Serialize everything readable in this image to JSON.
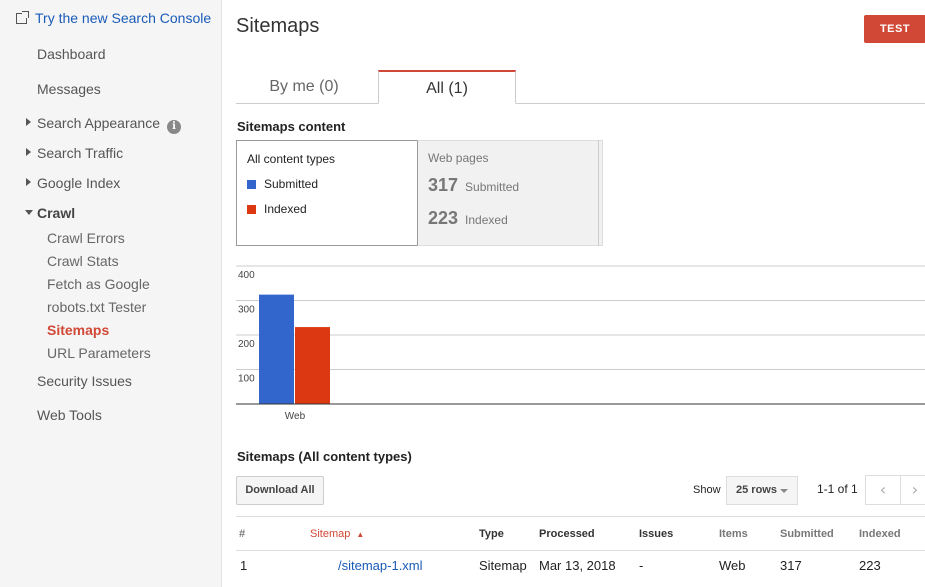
{
  "sidebar": {
    "new_console_link": "Try the new Search Console",
    "items": {
      "dashboard": "Dashboard",
      "messages": "Messages",
      "search_appearance": "Search Appearance",
      "search_traffic": "Search Traffic",
      "google_index": "Google Index",
      "crawl": "Crawl",
      "security_issues": "Security Issues",
      "web_tools": "Web Tools"
    },
    "crawl_sub": {
      "crawl_errors": "Crawl Errors",
      "crawl_stats": "Crawl Stats",
      "fetch_as_google": "Fetch as Google",
      "robots_tester": "robots.txt Tester",
      "sitemaps": "Sitemaps",
      "url_parameters": "URL Parameters"
    },
    "info_glyph": "i"
  },
  "header": {
    "title": "Sitemaps",
    "test_button": "TEST"
  },
  "tabs": {
    "by_me": "By me (0)",
    "all": "All (1)"
  },
  "content": {
    "section_title": "Sitemaps content",
    "content_types_label": "All content types",
    "legend_submitted": "Submitted",
    "legend_indexed": "Indexed",
    "web_pages_label": "Web pages",
    "submitted_count": "317",
    "submitted_label": "Submitted",
    "indexed_count": "223",
    "indexed_label": "Indexed"
  },
  "colors": {
    "submitted": "#3366cc",
    "indexed": "#dc3912",
    "accent": "#d14836",
    "link": "#1a5bb8"
  },
  "chart_data": {
    "type": "bar",
    "categories": [
      "Web"
    ],
    "series": [
      {
        "name": "Submitted",
        "values": [
          317
        ]
      },
      {
        "name": "Indexed",
        "values": [
          223
        ]
      }
    ],
    "y_ticks": [
      100,
      200,
      300,
      400
    ],
    "ylim": [
      0,
      400
    ],
    "grid": true
  },
  "table_section": {
    "title": "Sitemaps (All content types)",
    "download_all": "Download All",
    "show_label": "Show",
    "rows_value": "25 rows",
    "pager_text": "1-1 of 1",
    "prev_glyph": "‹",
    "next_glyph": "›",
    "headers": {
      "num": "#",
      "sitemap": "Sitemap",
      "sort_glyph": "▲",
      "type": "Type",
      "processed": "Processed",
      "issues": "Issues",
      "items": "Items",
      "submitted": "Submitted",
      "indexed": "Indexed"
    },
    "rows": [
      {
        "num": "1",
        "sitemap": "/sitemap-1.xml",
        "type": "Sitemap",
        "processed": "Mar 13, 2018",
        "issues": "-",
        "items": "Web",
        "submitted": "317",
        "indexed": "223"
      }
    ]
  }
}
